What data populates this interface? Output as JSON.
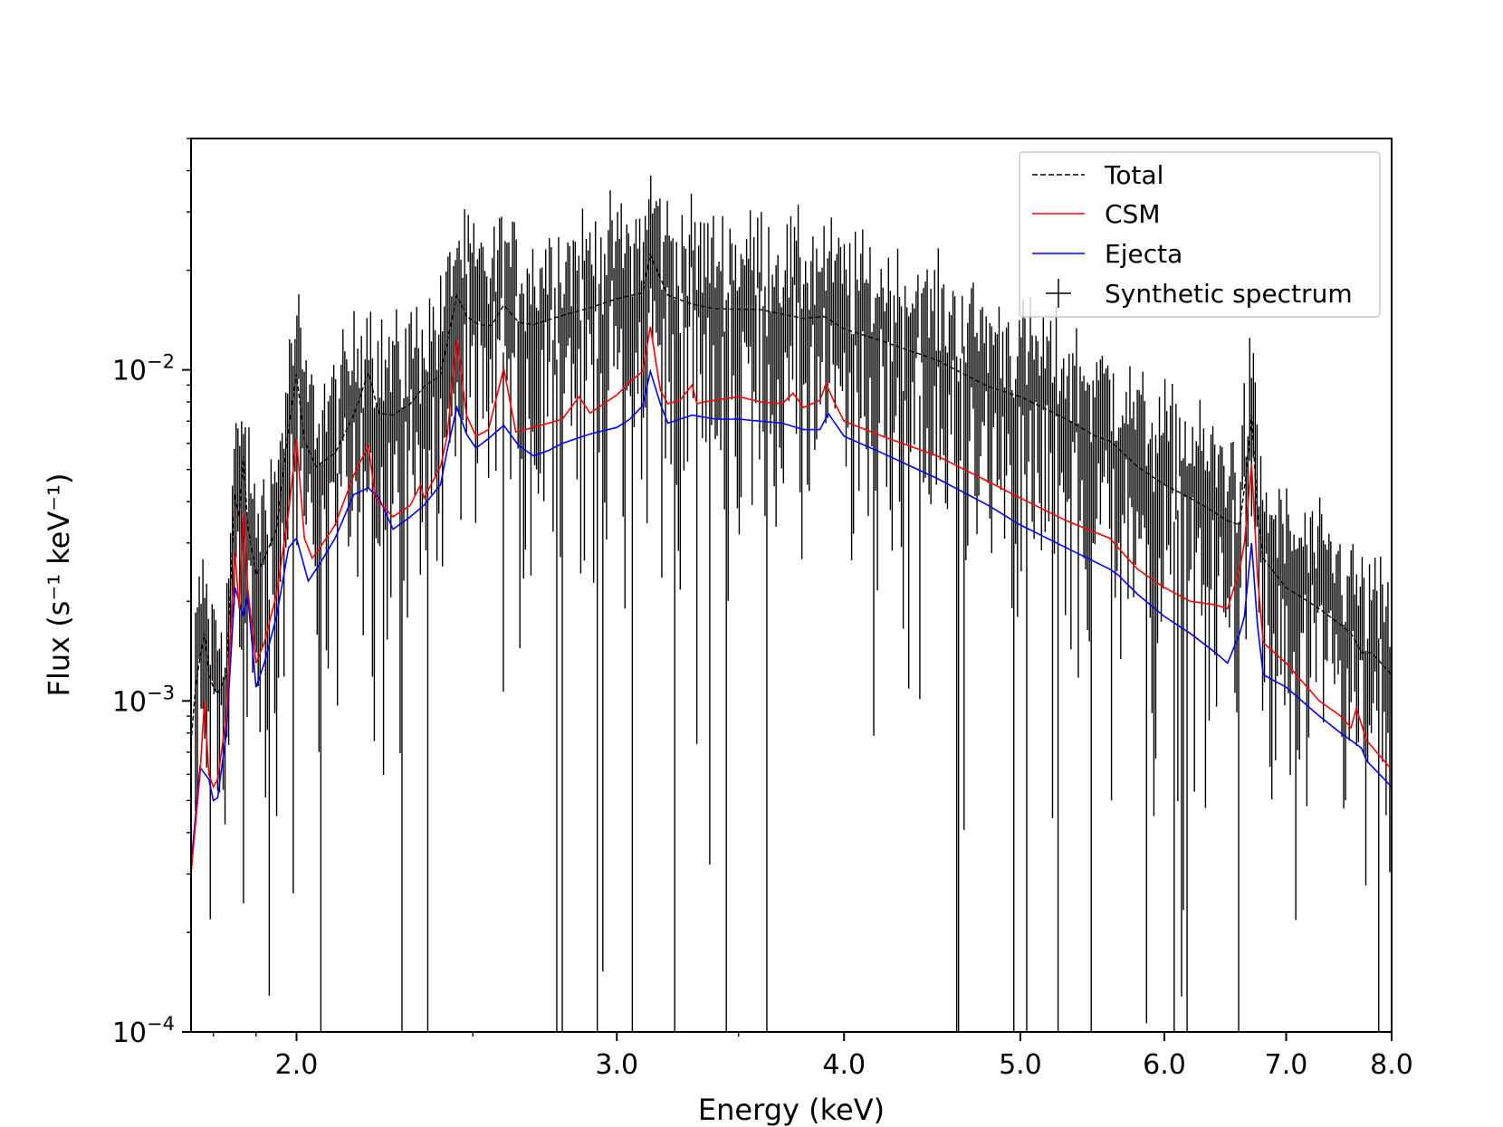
{
  "chart_data": {
    "type": "line",
    "xscale": "log",
    "yscale": "log",
    "xlabel": "Energy (keV)",
    "ylabel": "Flux (s⁻¹ keV⁻¹)",
    "xlim": [
      1.75,
      8.0
    ],
    "ylim": [
      0.0001,
      0.05
    ],
    "x_ticks": [
      {
        "value": 2.0,
        "label": "2.0"
      },
      {
        "value": 3.0,
        "label": "3.0"
      },
      {
        "value": 4.0,
        "label": "4.0"
      },
      {
        "value": 5.0,
        "label": "5.0"
      },
      {
        "value": 6.0,
        "label": "6.0"
      },
      {
        "value": 7.0,
        "label": "7.0"
      },
      {
        "value": 8.0,
        "label": "8.0"
      }
    ],
    "y_ticks": [
      {
        "value": 0.0001,
        "base": "10",
        "exp": "−4"
      },
      {
        "value": 0.001,
        "base": "10",
        "exp": "−3"
      },
      {
        "value": 0.01,
        "base": "10",
        "exp": "−2"
      }
    ],
    "legend": {
      "position": "top-right",
      "entries": [
        {
          "label": "Total",
          "color": "#000000",
          "style": "dashed"
        },
        {
          "label": "CSM",
          "color": "#ff0000",
          "style": "solid"
        },
        {
          "label": "Ejecta",
          "color": "#0000ff",
          "style": "solid"
        },
        {
          "label": "Synthetic spectrum",
          "color": "#000000",
          "style": "errorbar"
        }
      ]
    },
    "series": [
      {
        "name": "Ejecta",
        "color": "#0000ff",
        "x": [
          1.75,
          1.77,
          1.79,
          1.8,
          1.81,
          1.83,
          1.85,
          1.87,
          1.88,
          1.9,
          1.92,
          1.95,
          1.98,
          2.0,
          2.03,
          2.06,
          2.1,
          2.15,
          2.19,
          2.22,
          2.26,
          2.31,
          2.35,
          2.4,
          2.42,
          2.45,
          2.48,
          2.51,
          2.55,
          2.6,
          2.65,
          2.7,
          2.75,
          2.8,
          2.9,
          3.0,
          3.05,
          3.1,
          3.13,
          3.17,
          3.2,
          3.3,
          3.4,
          3.5,
          3.6,
          3.7,
          3.8,
          3.88,
          3.92,
          4.0,
          4.2,
          4.5,
          4.8,
          5.0,
          5.3,
          5.6,
          5.66,
          5.8,
          6.0,
          6.2,
          6.4,
          6.5,
          6.6,
          6.64,
          6.7,
          6.75,
          6.8,
          7.0,
          7.3,
          7.5,
          7.65,
          7.7,
          7.75,
          8.0
        ],
        "y": [
          0.00032,
          0.00063,
          0.00058,
          0.0005,
          0.00051,
          0.0008,
          0.0022,
          0.0018,
          0.0021,
          0.0011,
          0.0013,
          0.0018,
          0.0029,
          0.0031,
          0.0023,
          0.0026,
          0.0031,
          0.0042,
          0.0044,
          0.0041,
          0.0033,
          0.0036,
          0.0039,
          0.0045,
          0.0057,
          0.0077,
          0.0064,
          0.0058,
          0.0062,
          0.0068,
          0.0059,
          0.0055,
          0.0057,
          0.006,
          0.0064,
          0.0067,
          0.0071,
          0.0078,
          0.0099,
          0.0079,
          0.0069,
          0.0073,
          0.0071,
          0.0071,
          0.007,
          0.0069,
          0.0066,
          0.0066,
          0.0074,
          0.0063,
          0.0056,
          0.0047,
          0.0039,
          0.0034,
          0.0029,
          0.0025,
          0.0024,
          0.0021,
          0.0018,
          0.0016,
          0.0014,
          0.0013,
          0.0016,
          0.0018,
          0.003,
          0.0017,
          0.0012,
          0.0011,
          0.0009,
          0.0008,
          0.00074,
          0.00072,
          0.00066,
          0.00055
        ]
      },
      {
        "name": "CSM",
        "color": "#ff0000",
        "x": [
          1.75,
          1.77,
          1.78,
          1.79,
          1.8,
          1.81,
          1.83,
          1.85,
          1.86,
          1.87,
          1.88,
          1.9,
          1.92,
          1.95,
          1.98,
          2.0,
          2.02,
          2.04,
          2.06,
          2.1,
          2.15,
          2.19,
          2.21,
          2.26,
          2.31,
          2.34,
          2.35,
          2.4,
          2.42,
          2.45,
          2.48,
          2.51,
          2.55,
          2.6,
          2.64,
          2.67,
          2.7,
          2.8,
          2.86,
          2.9,
          3.0,
          3.05,
          3.1,
          3.13,
          3.17,
          3.2,
          3.25,
          3.3,
          3.32,
          3.35,
          3.4,
          3.5,
          3.6,
          3.7,
          3.75,
          3.8,
          3.88,
          3.91,
          3.95,
          4.0,
          4.2,
          4.5,
          4.8,
          5.0,
          5.3,
          5.6,
          5.66,
          5.8,
          6.0,
          6.2,
          6.4,
          6.5,
          6.6,
          6.64,
          6.7,
          6.75,
          6.8,
          7.0,
          7.3,
          7.5,
          7.6,
          7.65,
          7.7,
          7.75,
          8.0
        ],
        "y": [
          0.0003,
          0.0006,
          0.001,
          0.0006,
          0.00055,
          0.00058,
          0.0009,
          0.0028,
          0.0019,
          0.0037,
          0.0022,
          0.0013,
          0.0015,
          0.0021,
          0.0037,
          0.0062,
          0.0031,
          0.0027,
          0.0029,
          0.0034,
          0.0048,
          0.0059,
          0.0041,
          0.0036,
          0.0039,
          0.0045,
          0.0041,
          0.0051,
          0.0063,
          0.0123,
          0.0073,
          0.0063,
          0.0066,
          0.0101,
          0.0065,
          0.0066,
          0.0067,
          0.0071,
          0.0083,
          0.0074,
          0.0084,
          0.0092,
          0.0099,
          0.0135,
          0.0087,
          0.0079,
          0.0081,
          0.009,
          0.0079,
          0.008,
          0.0081,
          0.0083,
          0.008,
          0.0079,
          0.0085,
          0.0077,
          0.0081,
          0.0091,
          0.008,
          0.007,
          0.0063,
          0.0055,
          0.0046,
          0.0041,
          0.0035,
          0.0031,
          0.0029,
          0.0025,
          0.0022,
          0.002,
          0.00195,
          0.0019,
          0.0025,
          0.003,
          0.0052,
          0.0024,
          0.0015,
          0.0013,
          0.001,
          0.0009,
          0.00083,
          0.00095,
          0.00085,
          0.00076,
          0.00062
        ]
      },
      {
        "name": "Total",
        "color": "#000000",
        "x": [
          1.75,
          1.76,
          1.77,
          1.78,
          1.79,
          1.8,
          1.81,
          1.83,
          1.85,
          1.86,
          1.87,
          1.88,
          1.9,
          1.92,
          1.95,
          1.98,
          2.0,
          2.02,
          2.05,
          2.1,
          2.15,
          2.19,
          2.22,
          2.26,
          2.31,
          2.35,
          2.4,
          2.45,
          2.48,
          2.52,
          2.56,
          2.6,
          2.65,
          2.7,
          2.8,
          2.9,
          3.0,
          3.1,
          3.13,
          3.2,
          3.3,
          3.4,
          3.6,
          3.8,
          3.9,
          4.0,
          4.2,
          4.5,
          4.8,
          5.0,
          5.3,
          5.5,
          5.6,
          5.66,
          5.8,
          6.0,
          6.2,
          6.4,
          6.5,
          6.6,
          6.65,
          6.7,
          6.75,
          6.8,
          7.0,
          7.3,
          7.5,
          7.6,
          7.7,
          7.8,
          8.0
        ],
        "y": [
          0.00075,
          0.0011,
          0.00135,
          0.0016,
          0.0012,
          0.0011,
          0.00105,
          0.0012,
          0.0042,
          0.0036,
          0.0055,
          0.0034,
          0.0024,
          0.0027,
          0.0033,
          0.0066,
          0.0097,
          0.0061,
          0.0051,
          0.0056,
          0.0073,
          0.0098,
          0.0074,
          0.0073,
          0.0079,
          0.0089,
          0.0096,
          0.0168,
          0.0145,
          0.0137,
          0.0136,
          0.0157,
          0.0139,
          0.0137,
          0.0146,
          0.0154,
          0.0164,
          0.0171,
          0.0223,
          0.0168,
          0.0158,
          0.0153,
          0.0152,
          0.0143,
          0.0145,
          0.0133,
          0.0122,
          0.0107,
          0.0089,
          0.0083,
          0.0071,
          0.0063,
          0.0061,
          0.0058,
          0.0051,
          0.0045,
          0.0041,
          0.0037,
          0.0035,
          0.0034,
          0.0047,
          0.0073,
          0.0037,
          0.0027,
          0.0022,
          0.0019,
          0.0017,
          0.0016,
          0.0014,
          0.0014,
          0.0012
        ]
      }
    ],
    "synthetic_spectrum": {
      "name": "Synthetic spectrum",
      "color": "#000000",
      "generated_from": "Total",
      "n_points": 650,
      "x_range": [
        1.76,
        8.0
      ]
    }
  }
}
